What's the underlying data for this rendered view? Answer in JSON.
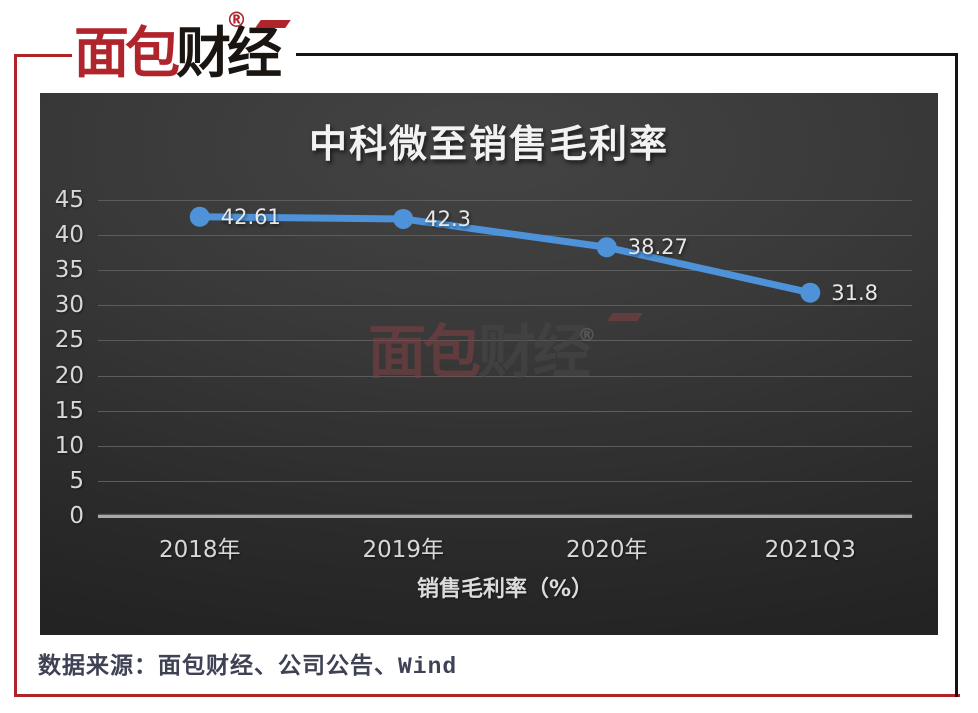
{
  "brand": {
    "logo_text_red": "面包",
    "logo_text_dark": "财经",
    "registered_mark": "®"
  },
  "watermark": {
    "text_red": "面包",
    "text_dark": "财经",
    "registered_mark": "®"
  },
  "footer": {
    "source_note": "数据来源：面包财经、公司公告、Wind"
  },
  "chart_data": {
    "type": "line",
    "title": "中科微至销售毛利率",
    "categories": [
      "2018年",
      "2019年",
      "2020年",
      "2021Q3"
    ],
    "series": [
      {
        "name": "销售毛利率",
        "values": [
          42.61,
          42.3,
          38.27,
          31.8
        ],
        "labels": [
          "42.61",
          "42.3",
          "38.27",
          "31.8"
        ]
      }
    ],
    "xlabel": "销售毛利率（%）",
    "yticks": [
      45,
      40,
      35,
      30,
      25,
      20,
      15,
      10,
      5,
      0
    ],
    "ylim": [
      0,
      45
    ],
    "grid": true,
    "legend": false,
    "line_color": "#4e93d9",
    "marker": "circle",
    "label_color": "#e8e8e8",
    "background": "dark-gray-gradient"
  },
  "colors": {
    "frame_red": "#b02329",
    "frame_black": "#141414",
    "brand_red": "#b0242b",
    "brand_dark": "#1b1512",
    "source_text": "#3e4254"
  }
}
